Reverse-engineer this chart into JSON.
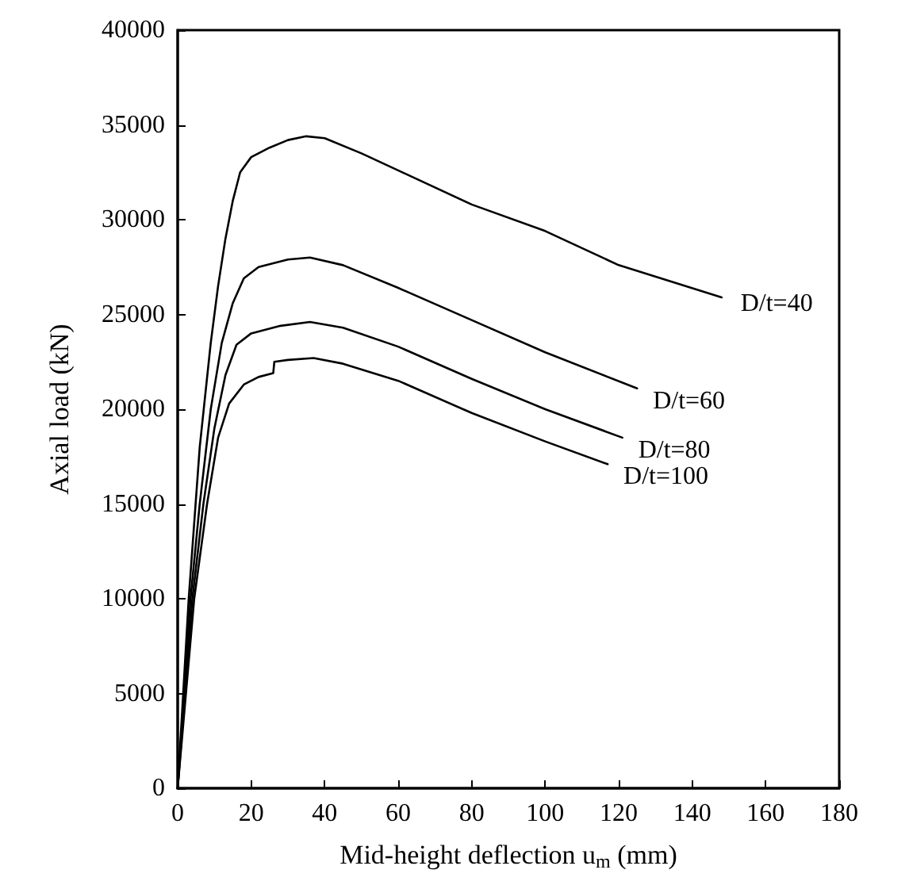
{
  "chart_data": {
    "type": "line",
    "xlabel": "Mid-height deflection u$_{m}$ (mm)",
    "ylabel": "Axial load (kN)",
    "xlim": [
      0,
      180
    ],
    "xticks": [
      0,
      20,
      40,
      60,
      80,
      100,
      120,
      140,
      160,
      180
    ],
    "ylim": [
      0,
      40000
    ],
    "yticks": [
      0,
      5000,
      10000,
      15000,
      20000,
      25000,
      30000,
      35000,
      40000
    ],
    "grid": false,
    "legend": false,
    "marker": "none",
    "line_style": "solid",
    "series": [
      {
        "name": "D/t=40",
        "color": "#000000",
        "x": [
          0,
          3,
          6,
          9,
          11,
          13,
          15,
          17,
          20,
          25,
          30,
          35,
          40,
          50,
          60,
          80,
          100,
          120,
          148
        ],
        "values": [
          0,
          10000,
          18000,
          23500,
          26500,
          29000,
          31000,
          32500,
          33300,
          33800,
          34200,
          34400,
          34300,
          33500,
          32600,
          30800,
          29400,
          27600,
          25900
        ]
      },
      {
        "name": "D/t=60",
        "color": "#000000",
        "x": [
          0,
          3.5,
          6,
          9,
          12,
          15,
          18,
          22,
          30,
          36,
          45,
          60,
          80,
          100,
          125
        ],
        "values": [
          0,
          10000,
          15000,
          20000,
          23500,
          25600,
          26900,
          27500,
          27900,
          28000,
          27600,
          26400,
          24700,
          23000,
          21100
        ]
      },
      {
        "name": "D/t=80",
        "color": "#000000",
        "x": [
          0,
          4,
          7,
          10,
          13,
          16,
          20,
          28,
          36,
          45,
          60,
          80,
          100,
          121
        ],
        "values": [
          0,
          10000,
          15000,
          19000,
          21800,
          23400,
          24000,
          24400,
          24600,
          24300,
          23300,
          21600,
          20000,
          18500
        ]
      },
      {
        "name": "D/t=100",
        "color": "#000000",
        "x": [
          0,
          4.5,
          8,
          11,
          14,
          18,
          22,
          26,
          26.3,
          30,
          37,
          45,
          60,
          80,
          100,
          117
        ],
        "values": [
          0,
          10000,
          15000,
          18500,
          20300,
          21300,
          21700,
          21900,
          22500,
          22600,
          22700,
          22400,
          21500,
          19800,
          18300,
          17100
        ]
      }
    ]
  }
}
